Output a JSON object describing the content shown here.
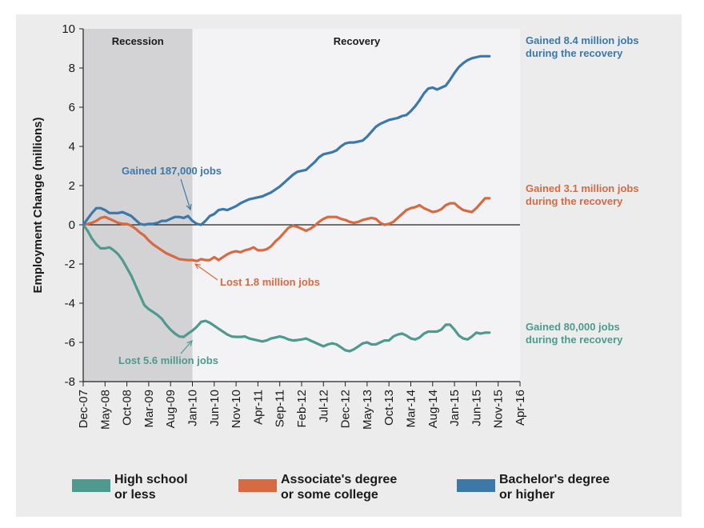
{
  "chart_data": {
    "type": "line",
    "ylabel": "Employment Change (millions)",
    "ylim": [
      -8,
      10
    ],
    "yticks": [
      "10",
      "8",
      "6",
      "4",
      "2",
      "0",
      "-2",
      "-4",
      "-6",
      "-8"
    ],
    "xticks": [
      "Dec-07",
      "May-08",
      "Oct-08",
      "Mar-09",
      "Aug-09",
      "Jan-10",
      "Jun-10",
      "Nov-10",
      "Apr-11",
      "Sep-11",
      "Feb-12",
      "Jul-12",
      "Dec-12",
      "May-13",
      "Oct-13",
      "Mar-14",
      "Aug-14",
      "Jan-15",
      "Jun-15",
      "Nov-15",
      "Apr-16"
    ],
    "x_start": "Dec-07",
    "x_end": "Apr-16",
    "recession": {
      "label": "Recession",
      "start": 0,
      "end": 25
    },
    "recovery": {
      "label": "Recovery"
    },
    "series": [
      {
        "name": "High school or less",
        "color": "#4e9a8e",
        "points": [
          [
            0,
            0
          ],
          [
            1,
            -0.3
          ],
          [
            2,
            -0.7
          ],
          [
            3,
            -1.0
          ],
          [
            4,
            -1.2
          ],
          [
            5,
            -1.2
          ],
          [
            6,
            -1.15
          ],
          [
            7,
            -1.3
          ],
          [
            8,
            -1.5
          ],
          [
            9,
            -1.8
          ],
          [
            10,
            -2.2
          ],
          [
            11,
            -2.6
          ],
          [
            12,
            -3.1
          ],
          [
            13,
            -3.6
          ],
          [
            14,
            -4.1
          ],
          [
            15,
            -4.3
          ],
          [
            16,
            -4.45
          ],
          [
            17,
            -4.6
          ],
          [
            18,
            -4.8
          ],
          [
            19,
            -5.1
          ],
          [
            20,
            -5.35
          ],
          [
            21,
            -5.55
          ],
          [
            22,
            -5.7
          ],
          [
            23,
            -5.72
          ],
          [
            24,
            -5.55
          ],
          [
            25,
            -5.4
          ],
          [
            26,
            -5.2
          ],
          [
            27,
            -4.95
          ],
          [
            28,
            -4.9
          ],
          [
            29,
            -5.0
          ],
          [
            30,
            -5.15
          ],
          [
            31,
            -5.3
          ],
          [
            32,
            -5.45
          ],
          [
            33,
            -5.6
          ],
          [
            34,
            -5.7
          ],
          [
            35,
            -5.72
          ],
          [
            36,
            -5.72
          ],
          [
            37,
            -5.7
          ],
          [
            38,
            -5.8
          ],
          [
            39,
            -5.85
          ],
          [
            40,
            -5.9
          ],
          [
            41,
            -5.95
          ],
          [
            42,
            -5.9
          ],
          [
            43,
            -5.8
          ],
          [
            44,
            -5.75
          ],
          [
            45,
            -5.7
          ],
          [
            46,
            -5.75
          ],
          [
            47,
            -5.85
          ],
          [
            48,
            -5.9
          ],
          [
            49,
            -5.88
          ],
          [
            50,
            -5.85
          ],
          [
            51,
            -5.8
          ],
          [
            52,
            -5.9
          ],
          [
            53,
            -6.0
          ],
          [
            54,
            -6.1
          ],
          [
            55,
            -6.2
          ],
          [
            56,
            -6.1
          ],
          [
            57,
            -6.05
          ],
          [
            58,
            -6.1
          ],
          [
            59,
            -6.25
          ],
          [
            60,
            -6.4
          ],
          [
            61,
            -6.45
          ],
          [
            62,
            -6.35
          ],
          [
            63,
            -6.2
          ],
          [
            64,
            -6.05
          ],
          [
            65,
            -6.0
          ],
          [
            66,
            -6.1
          ],
          [
            67,
            -6.1
          ],
          [
            68,
            -6.0
          ],
          [
            69,
            -5.9
          ],
          [
            70,
            -5.9
          ],
          [
            71,
            -5.7
          ],
          [
            72,
            -5.6
          ],
          [
            73,
            -5.55
          ],
          [
            74,
            -5.65
          ],
          [
            75,
            -5.8
          ],
          [
            76,
            -5.85
          ],
          [
            77,
            -5.75
          ],
          [
            78,
            -5.55
          ],
          [
            79,
            -5.45
          ],
          [
            80,
            -5.45
          ],
          [
            81,
            -5.45
          ],
          [
            82,
            -5.35
          ],
          [
            83,
            -5.1
          ],
          [
            84,
            -5.1
          ],
          [
            85,
            -5.35
          ],
          [
            86,
            -5.65
          ],
          [
            87,
            -5.8
          ],
          [
            88,
            -5.85
          ],
          [
            89,
            -5.7
          ],
          [
            90,
            -5.5
          ],
          [
            91,
            -5.55
          ],
          [
            92,
            -5.5
          ],
          [
            93,
            -5.5
          ]
        ]
      },
      {
        "name": "Associate's degree or some college",
        "color": "#d66a42",
        "points": [
          [
            0,
            0
          ],
          [
            1,
            0.05
          ],
          [
            2,
            0.1
          ],
          [
            3,
            0.2
          ],
          [
            4,
            0.35
          ],
          [
            5,
            0.4
          ],
          [
            6,
            0.3
          ],
          [
            7,
            0.2
          ],
          [
            8,
            0.1
          ],
          [
            9,
            0.05
          ],
          [
            10,
            0.05
          ],
          [
            11,
            -0.05
          ],
          [
            12,
            -0.2
          ],
          [
            13,
            -0.4
          ],
          [
            14,
            -0.55
          ],
          [
            15,
            -0.8
          ],
          [
            16,
            -1.0
          ],
          [
            17,
            -1.15
          ],
          [
            18,
            -1.3
          ],
          [
            19,
            -1.45
          ],
          [
            20,
            -1.55
          ],
          [
            21,
            -1.65
          ],
          [
            22,
            -1.75
          ],
          [
            23,
            -1.78
          ],
          [
            24,
            -1.8
          ],
          [
            25,
            -1.8
          ],
          [
            26,
            -1.85
          ],
          [
            27,
            -1.75
          ],
          [
            28,
            -1.8
          ],
          [
            29,
            -1.8
          ],
          [
            30,
            -1.65
          ],
          [
            31,
            -1.8
          ],
          [
            32,
            -1.65
          ],
          [
            33,
            -1.5
          ],
          [
            34,
            -1.4
          ],
          [
            35,
            -1.35
          ],
          [
            36,
            -1.4
          ],
          [
            37,
            -1.3
          ],
          [
            38,
            -1.25
          ],
          [
            39,
            -1.15
          ],
          [
            40,
            -1.3
          ],
          [
            41,
            -1.3
          ],
          [
            42,
            -1.25
          ],
          [
            43,
            -1.1
          ],
          [
            44,
            -0.85
          ],
          [
            45,
            -0.65
          ],
          [
            46,
            -0.4
          ],
          [
            47,
            -0.15
          ],
          [
            48,
            -0.05
          ],
          [
            49,
            -0.1
          ],
          [
            50,
            -0.2
          ],
          [
            51,
            -0.3
          ],
          [
            52,
            -0.2
          ],
          [
            53,
            -0.05
          ],
          [
            54,
            0.15
          ],
          [
            55,
            0.3
          ],
          [
            56,
            0.4
          ],
          [
            57,
            0.4
          ],
          [
            58,
            0.4
          ],
          [
            59,
            0.3
          ],
          [
            60,
            0.25
          ],
          [
            61,
            0.15
          ],
          [
            62,
            0.1
          ],
          [
            63,
            0.15
          ],
          [
            64,
            0.25
          ],
          [
            65,
            0.3
          ],
          [
            66,
            0.35
          ],
          [
            67,
            0.3
          ],
          [
            68,
            0.1
          ],
          [
            69,
            0.0
          ],
          [
            70,
            0.05
          ],
          [
            71,
            0.15
          ],
          [
            72,
            0.35
          ],
          [
            73,
            0.55
          ],
          [
            74,
            0.75
          ],
          [
            75,
            0.85
          ],
          [
            76,
            0.9
          ],
          [
            77,
            1.0
          ],
          [
            78,
            0.85
          ],
          [
            79,
            0.75
          ],
          [
            80,
            0.65
          ],
          [
            81,
            0.7
          ],
          [
            82,
            0.8
          ],
          [
            83,
            1.0
          ],
          [
            84,
            1.1
          ],
          [
            85,
            1.1
          ],
          [
            86,
            0.9
          ],
          [
            87,
            0.75
          ],
          [
            88,
            0.7
          ],
          [
            89,
            0.65
          ],
          [
            90,
            0.85
          ],
          [
            91,
            1.1
          ],
          [
            92,
            1.35
          ],
          [
            93,
            1.35
          ]
        ]
      },
      {
        "name": "Bachelor's degree or higher",
        "color": "#3c78a8",
        "points": [
          [
            0,
            0
          ],
          [
            1,
            0.3
          ],
          [
            2,
            0.6
          ],
          [
            3,
            0.85
          ],
          [
            4,
            0.85
          ],
          [
            5,
            0.75
          ],
          [
            6,
            0.6
          ],
          [
            7,
            0.6
          ],
          [
            8,
            0.6
          ],
          [
            9,
            0.65
          ],
          [
            10,
            0.55
          ],
          [
            11,
            0.45
          ],
          [
            12,
            0.25
          ],
          [
            13,
            0.05
          ],
          [
            14,
            0.0
          ],
          [
            15,
            0.05
          ],
          [
            16,
            0.05
          ],
          [
            17,
            0.1
          ],
          [
            18,
            0.2
          ],
          [
            19,
            0.2
          ],
          [
            20,
            0.3
          ],
          [
            21,
            0.4
          ],
          [
            22,
            0.4
          ],
          [
            23,
            0.35
          ],
          [
            24,
            0.45
          ],
          [
            25,
            0.2
          ],
          [
            26,
            0.05
          ],
          [
            27,
            0.0
          ],
          [
            28,
            0.2
          ],
          [
            29,
            0.45
          ],
          [
            30,
            0.55
          ],
          [
            31,
            0.75
          ],
          [
            32,
            0.8
          ],
          [
            33,
            0.75
          ],
          [
            34,
            0.85
          ],
          [
            35,
            0.95
          ],
          [
            36,
            1.1
          ],
          [
            37,
            1.2
          ],
          [
            38,
            1.3
          ],
          [
            39,
            1.35
          ],
          [
            40,
            1.4
          ],
          [
            41,
            1.45
          ],
          [
            42,
            1.55
          ],
          [
            43,
            1.65
          ],
          [
            44,
            1.8
          ],
          [
            45,
            1.95
          ],
          [
            46,
            2.15
          ],
          [
            47,
            2.35
          ],
          [
            48,
            2.55
          ],
          [
            49,
            2.7
          ],
          [
            50,
            2.75
          ],
          [
            51,
            2.8
          ],
          [
            52,
            3.0
          ],
          [
            53,
            3.2
          ],
          [
            54,
            3.45
          ],
          [
            55,
            3.6
          ],
          [
            56,
            3.65
          ],
          [
            57,
            3.7
          ],
          [
            58,
            3.8
          ],
          [
            59,
            4.0
          ],
          [
            60,
            4.15
          ],
          [
            61,
            4.2
          ],
          [
            62,
            4.2
          ],
          [
            63,
            4.25
          ],
          [
            64,
            4.3
          ],
          [
            65,
            4.5
          ],
          [
            66,
            4.75
          ],
          [
            67,
            5.0
          ],
          [
            68,
            5.15
          ],
          [
            69,
            5.25
          ],
          [
            70,
            5.35
          ],
          [
            71,
            5.4
          ],
          [
            72,
            5.45
          ],
          [
            73,
            5.55
          ],
          [
            74,
            5.6
          ],
          [
            75,
            5.8
          ],
          [
            76,
            6.05
          ],
          [
            77,
            6.35
          ],
          [
            78,
            6.7
          ],
          [
            79,
            6.95
          ],
          [
            80,
            7.0
          ],
          [
            81,
            6.9
          ],
          [
            82,
            7.0
          ],
          [
            83,
            7.1
          ],
          [
            84,
            7.4
          ],
          [
            85,
            7.75
          ],
          [
            86,
            8.05
          ],
          [
            87,
            8.25
          ],
          [
            88,
            8.4
          ],
          [
            89,
            8.5
          ],
          [
            90,
            8.55
          ],
          [
            91,
            8.6
          ],
          [
            92,
            8.6
          ],
          [
            93,
            8.6
          ]
        ]
      }
    ],
    "annotations": [
      {
        "series": 2,
        "text": "Gained 187,000 jobs",
        "at": [
          25,
          0.2
        ]
      },
      {
        "series": 1,
        "text": "Lost 1.8 million jobs",
        "at": [
          25,
          -1.8
        ]
      },
      {
        "series": 0,
        "text": "Lost 5.6 million jobs",
        "at": [
          25,
          -5.7
        ]
      }
    ],
    "end_labels": [
      {
        "series": 2,
        "lines": [
          "Gained 8.4 million jobs",
          "during the recovery"
        ]
      },
      {
        "series": 1,
        "lines": [
          "Gained 3.1 million jobs",
          "during the recovery"
        ]
      },
      {
        "series": 0,
        "lines": [
          "Gained 80,000 jobs",
          "during the recovery"
        ]
      }
    ],
    "legend": [
      {
        "series": 0,
        "lines": [
          "High school",
          "or less"
        ]
      },
      {
        "series": 1,
        "lines": [
          "Associate's degree",
          "or some college"
        ]
      },
      {
        "series": 2,
        "lines": [
          "Bachelor's degree",
          "or higher"
        ]
      }
    ]
  }
}
